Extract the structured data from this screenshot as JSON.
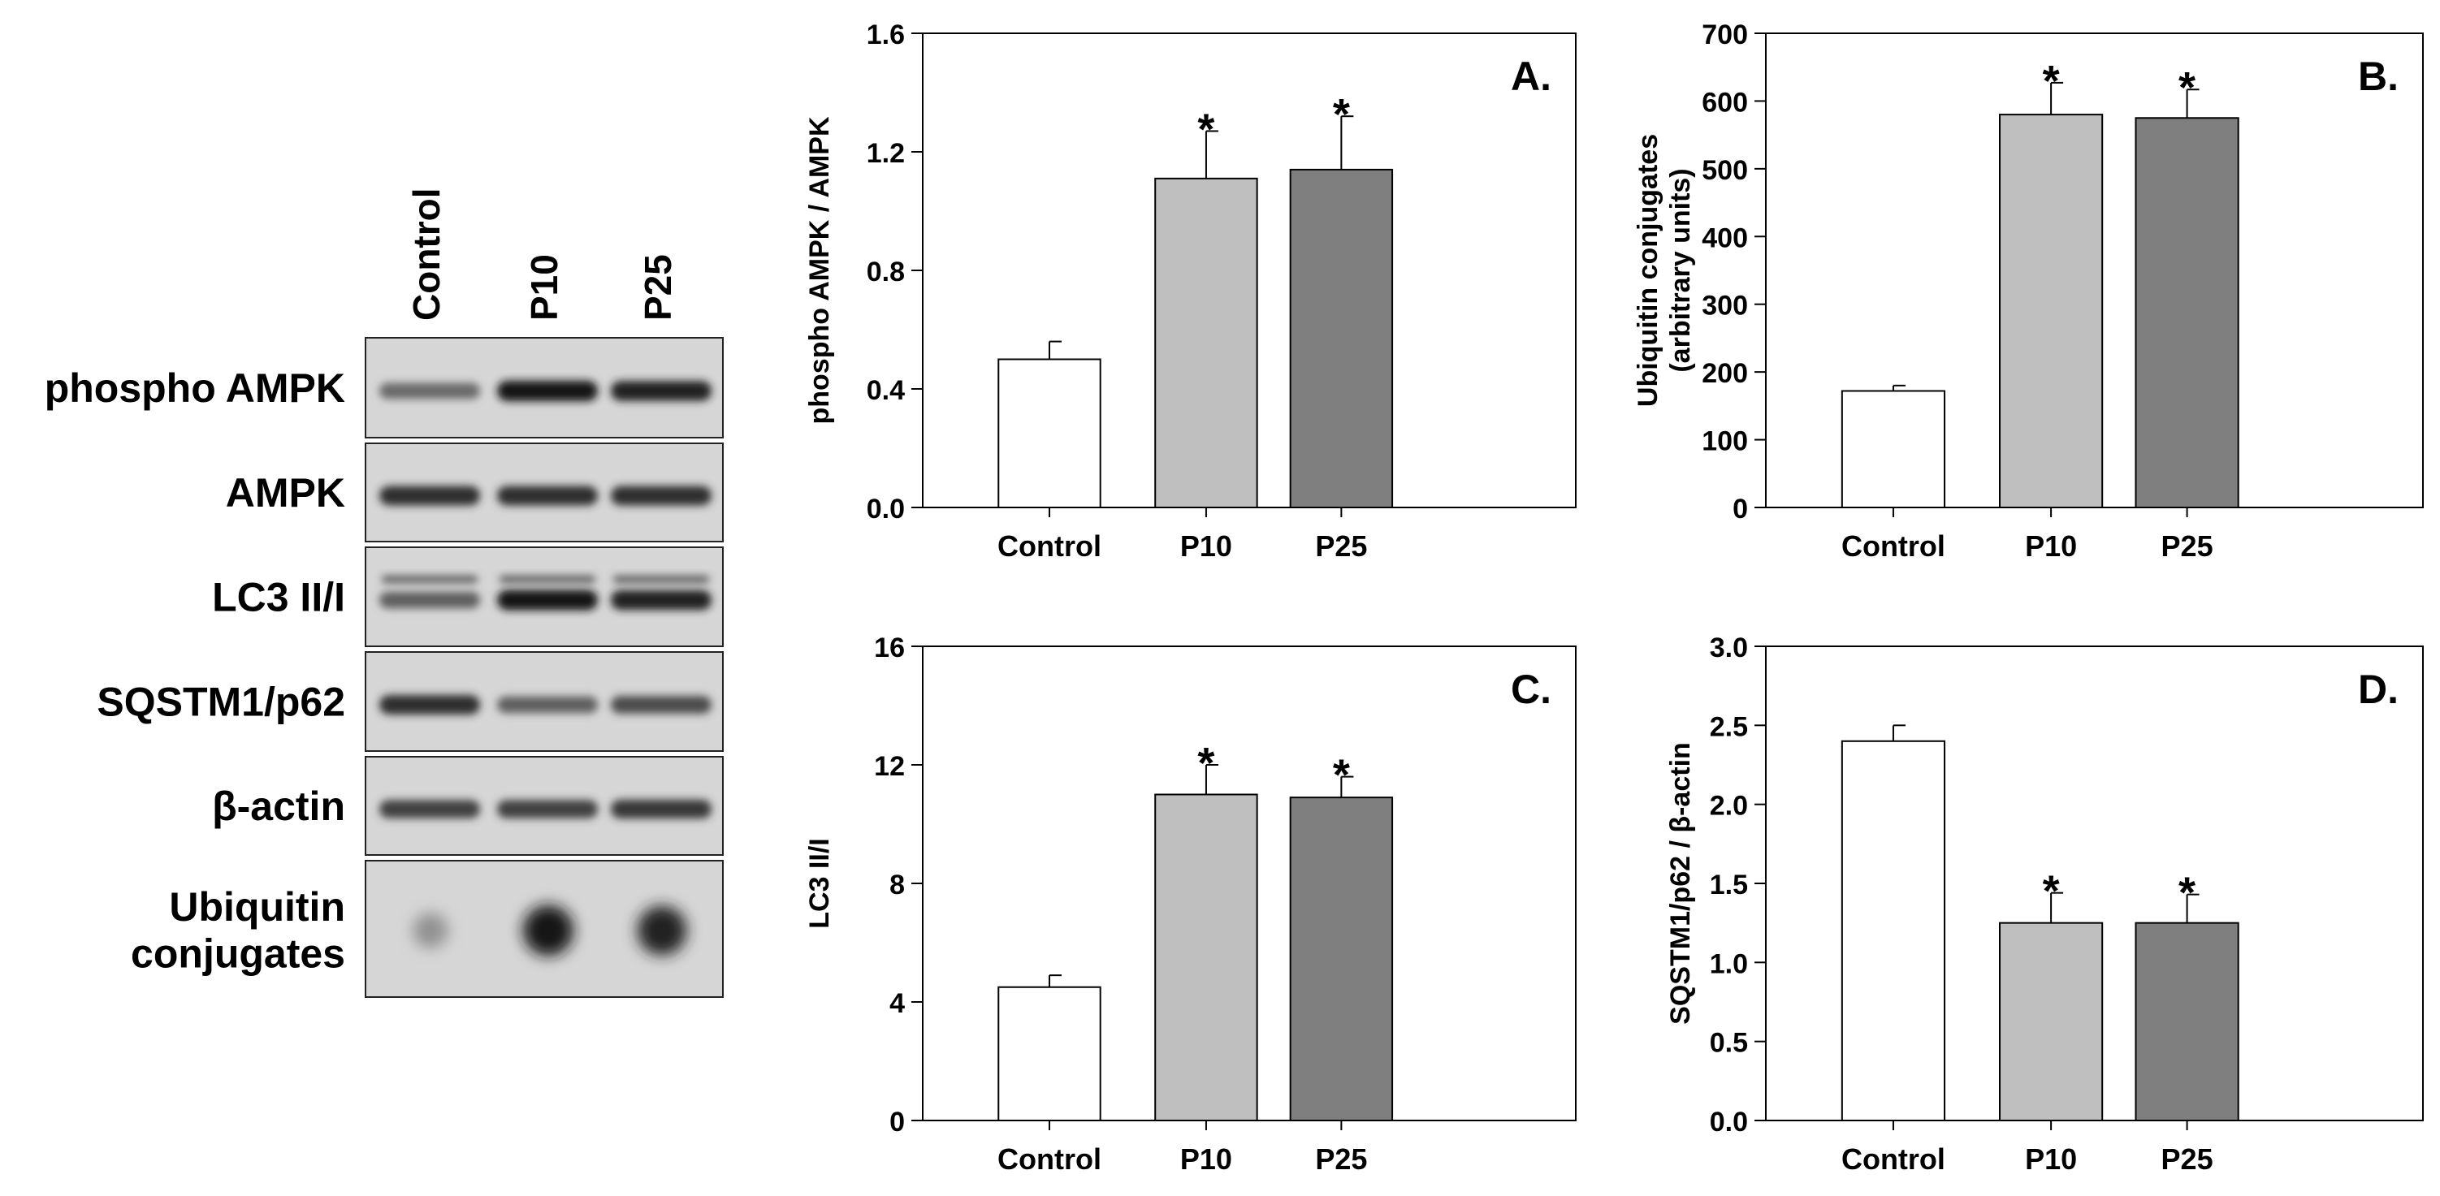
{
  "blot": {
    "lanes": [
      "Control",
      "P10",
      "P25"
    ],
    "rows": [
      {
        "label": "phospho AMPK",
        "intensity": [
          0.55,
          0.95,
          0.9
        ]
      },
      {
        "label": "AMPK",
        "intensity": [
          0.85,
          0.85,
          0.85
        ]
      },
      {
        "label": "LC3 II/I",
        "intensity": [
          0.6,
          0.95,
          0.9
        ]
      },
      {
        "label": "SQSTM1/p62",
        "intensity": [
          0.85,
          0.6,
          0.7
        ]
      },
      {
        "label": "β-actin",
        "intensity": [
          0.75,
          0.75,
          0.8
        ]
      },
      {
        "label": "Ubiquitin conjugates",
        "label_lines": [
          "Ubiquitin",
          "conjugates"
        ],
        "intensity": [
          0.35,
          0.95,
          0.9
        ]
      }
    ]
  },
  "chart_data": [
    {
      "type": "bar",
      "panel_label": "A.",
      "categories": [
        "Control",
        "P10",
        "P25"
      ],
      "values": [
        0.5,
        1.11,
        1.14
      ],
      "errors": [
        0.06,
        0.16,
        0.18
      ],
      "significance": [
        "",
        "*",
        "*"
      ],
      "ylabel": [
        "phospho AMPK / AMPK"
      ],
      "ylim": [
        0,
        1.6
      ],
      "yticks": [
        0.0,
        0.4,
        0.8,
        1.2,
        1.6
      ],
      "ytick_labels": [
        "0.0",
        "0.4",
        "0.8",
        "1.2",
        "1.6"
      ],
      "bar_colors": [
        "#ffffff",
        "#bfbfbf",
        "#7f7f7f"
      ]
    },
    {
      "type": "bar",
      "panel_label": "B.",
      "categories": [
        "Control",
        "P10",
        "P25"
      ],
      "values": [
        172,
        580,
        575
      ],
      "errors": [
        8,
        47,
        42
      ],
      "significance": [
        "",
        "*",
        "*"
      ],
      "ylabel": [
        "Ubiquitin conjugates",
        "(arbitrary units)"
      ],
      "ylim": [
        0,
        700
      ],
      "yticks": [
        0,
        100,
        200,
        300,
        400,
        500,
        600,
        700
      ],
      "ytick_labels": [
        "0",
        "100",
        "200",
        "300",
        "400",
        "500",
        "600",
        "700"
      ],
      "bar_colors": [
        "#ffffff",
        "#bfbfbf",
        "#7f7f7f"
      ]
    },
    {
      "type": "bar",
      "panel_label": "C.",
      "categories": [
        "Control",
        "P10",
        "P25"
      ],
      "values": [
        4.5,
        11.0,
        10.9
      ],
      "errors": [
        0.4,
        1.0,
        0.7
      ],
      "significance": [
        "",
        "*",
        "*"
      ],
      "ylabel": [
        "LC3 II/I"
      ],
      "ylim": [
        0,
        16
      ],
      "yticks": [
        0,
        4,
        8,
        12,
        16
      ],
      "ytick_labels": [
        "0",
        "4",
        "8",
        "12",
        "16"
      ],
      "bar_colors": [
        "#ffffff",
        "#bfbfbf",
        "#7f7f7f"
      ]
    },
    {
      "type": "bar",
      "panel_label": "D.",
      "categories": [
        "Control",
        "P10",
        "P25"
      ],
      "values": [
        2.4,
        1.25,
        1.25
      ],
      "errors": [
        0.1,
        0.19,
        0.18
      ],
      "significance": [
        "",
        "*",
        "*"
      ],
      "ylabel": [
        "SQSTM1/p62 / β-actin"
      ],
      "ylim": [
        0,
        3.0
      ],
      "yticks": [
        0.0,
        0.5,
        1.0,
        1.5,
        2.0,
        2.5,
        3.0
      ],
      "ytick_labels": [
        "0.0",
        "0.5",
        "1.0",
        "1.5",
        "2.0",
        "2.5",
        "3.0"
      ],
      "bar_colors": [
        "#ffffff",
        "#bfbfbf",
        "#7f7f7f"
      ]
    }
  ]
}
